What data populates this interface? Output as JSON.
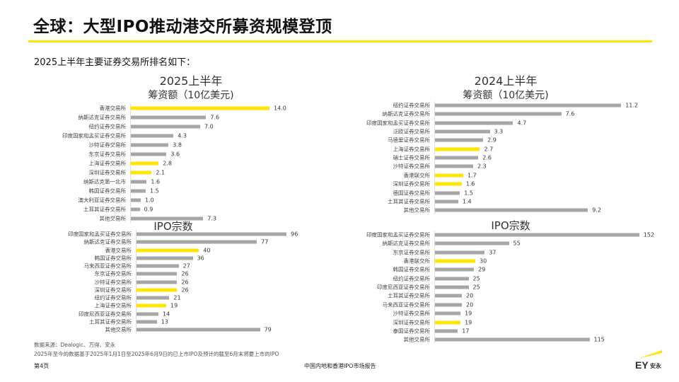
{
  "header": {
    "title": "全球：大型IPO推动港交所募资规模登顶",
    "subtitle": "2025上半年主要证券交易所排名如下："
  },
  "colors": {
    "highlight": "#FFE600",
    "default": "#A6A6A6",
    "accent": "#FFE600"
  },
  "chart_data": [
    {
      "type": "bar",
      "orientation": "horizontal",
      "title": "2025上半年",
      "subtitle": "筹资额（10亿美元)",
      "categories": [
        "香港交易所",
        "纳斯达克证券交易所",
        "纽约证券交易所",
        "印度国家和孟买证券交易所",
        "沙特证券交易所",
        "东京证券交易所",
        "上海证券交易所",
        "深圳证券交易所",
        "纳斯达克第一北市",
        "韩国证券交易所",
        "澳大利亚证券交易所",
        "土耳其证券交易所",
        "其他交易所"
      ],
      "values": [
        14.0,
        7.6,
        7.0,
        4.3,
        3.8,
        3.6,
        2.8,
        2.1,
        1.6,
        1.5,
        1.0,
        0.9,
        7.3
      ],
      "labels": [
        "14.0",
        "7.6",
        "7.0",
        "4.3",
        "3.8",
        "3.6",
        "2.8",
        "2.1",
        "1.6",
        "1.5",
        "1.0",
        "0.9",
        "7.3"
      ],
      "highlighted": [
        "香港交易所",
        "上海证券交易所",
        "深圳证券交易所"
      ]
    },
    {
      "type": "bar",
      "orientation": "horizontal",
      "title": "IPO宗数",
      "categories": [
        "印度国家和孟买证券交易所",
        "纳斯达克证券交易所",
        "香港交易所",
        "韩国证券交易所",
        "马来西亚证券交易所",
        "东京证券交易所",
        "沙特证券交易所",
        "深圳证券交易所",
        "纽约证券交易所",
        "上海证券交易所",
        "印度尼西亚证券交易所",
        "土耳其证券交易所",
        "其他交易所"
      ],
      "values": [
        96,
        77,
        40,
        36,
        27,
        26,
        26,
        26,
        21,
        19,
        14,
        13,
        79
      ],
      "labels": [
        "96",
        "77",
        "40",
        "36",
        "27",
        "26",
        "26",
        "26",
        "21",
        "19",
        "14",
        "13",
        "79"
      ],
      "highlighted": [
        "香港交易所",
        "深圳证券交易所",
        "上海证券交易所"
      ]
    },
    {
      "type": "bar",
      "orientation": "horizontal",
      "title": "2024上半年",
      "subtitle": "筹资额（10亿美元)",
      "categories": [
        "纽约证券交易所",
        "纳斯达克证券交易所",
        "印度国家和孟买证券交易所",
        "泛欧证券交易所",
        "马德里证券交易所",
        "上海证券交易所",
        "瑞士证券交易所",
        "沙特证券交易所",
        "香港联交所",
        "深圳证券交易所",
        "德国证券交易所",
        "土耳其证券交易所",
        "其他交易所"
      ],
      "values": [
        11.2,
        7.6,
        4.7,
        3.3,
        2.9,
        2.7,
        2.6,
        2.3,
        1.7,
        1.6,
        1.5,
        1.4,
        9.2
      ],
      "labels": [
        "11.2",
        "7.6",
        "4.7",
        "3.3",
        "2.9",
        "2.7",
        "2.6",
        "2.3",
        "1.7",
        "1.6",
        "1.5",
        "1.4",
        "9.2"
      ],
      "highlighted": [
        "上海证券交易所",
        "香港联交所",
        "深圳证券交易所"
      ]
    },
    {
      "type": "bar",
      "orientation": "horizontal",
      "title": "IPO宗数",
      "categories": [
        "印度国家和孟买证券交易所",
        "纳斯达克证券交易所",
        "东京证券交易所",
        "香港联交所",
        "韩国证券交易所",
        "纽约证券交易所",
        "印度尼西亚证券交易所",
        "土耳其证券交易所",
        "马来西亚证券交易所",
        "沙特证券交易所",
        "深圳证券交易所",
        "泰国证券交易所",
        "其他交易所"
      ],
      "values": [
        152,
        55,
        37,
        30,
        29,
        25,
        25,
        20,
        20,
        19,
        19,
        17,
        115
      ],
      "labels": [
        "152",
        "55",
        "37",
        "30",
        "29",
        "25",
        "25",
        "20",
        "20",
        "19",
        "19",
        "17",
        "115"
      ],
      "highlighted": [
        "香港联交所",
        "深圳证券交易所"
      ]
    }
  ],
  "footer": {
    "source": "数据来源：Dealogic、万得、安永",
    "note": "2025年至今的数据基于2025年1月1日至2025年6月9日的已上市IPO及预计的截至6月末将要上市的IPO",
    "page": "第4页",
    "report": "中国内地和香港IPO市场报告",
    "logo_text": "EY安永"
  }
}
